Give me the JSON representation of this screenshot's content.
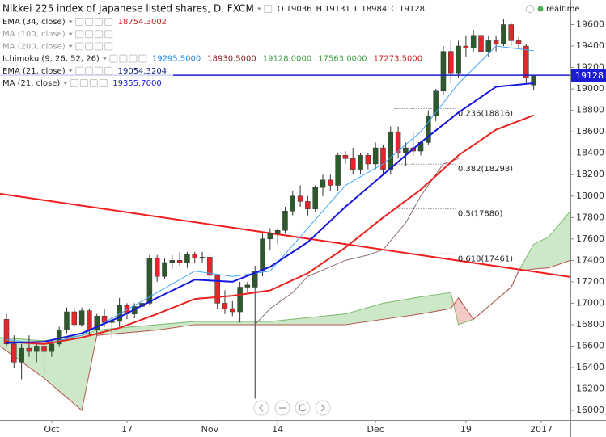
{
  "chart_data": {
    "type": "candlestick",
    "title": "Nikkei 225 index of Japanese listed shares, D, FXCM",
    "ohlc_letters": [
      "O",
      "H",
      "L",
      "C"
    ],
    "status": "realtime",
    "open": [
      16850,
      16620,
      16450,
      16580,
      16550,
      16600,
      16550,
      16620,
      16750,
      16920,
      16800,
      16930,
      16750,
      16880,
      16820,
      16830,
      16980,
      16900,
      16970,
      17000,
      17420,
      17250,
      17380,
      17400,
      17380,
      17460,
      17420,
      17430,
      17260,
      17000,
      16950,
      16920,
      17150,
      17150,
      17300,
      17600,
      17650,
      17680,
      17860,
      18000,
      17950,
      17880,
      18080,
      18150,
      18100,
      18380,
      18350,
      18250,
      18380,
      18300,
      18450,
      18250,
      18600,
      18400,
      18450,
      18420,
      18500,
      18750,
      18980,
      19350,
      19150,
      19400,
      19380,
      19500,
      19350,
      19450,
      19420,
      19600,
      19450,
      19400,
      19036
    ],
    "high": [
      16900,
      16700,
      16620,
      16700,
      16620,
      16700,
      16650,
      16780,
      16960,
      16960,
      16960,
      16950,
      16900,
      16950,
      16880,
      17050,
      17000,
      17000,
      17050,
      17450,
      17450,
      17420,
      17450,
      17480,
      17480,
      17480,
      17480,
      17460,
      17270,
      17120,
      17020,
      17200,
      17200,
      17350,
      17650,
      17700,
      17700,
      17900,
      18050,
      18100,
      18000,
      18100,
      18200,
      18200,
      18400,
      18420,
      18450,
      18400,
      18400,
      18500,
      18480,
      18650,
      18650,
      18500,
      18600,
      18520,
      18800,
      19000,
      19400,
      19450,
      19450,
      19500,
      19550,
      19550,
      19500,
      19500,
      19650,
      19620,
      19480,
      19420,
      19131
    ],
    "low": [
      16600,
      16400,
      16290,
      16500,
      16450,
      16320,
      16500,
      16600,
      16720,
      16780,
      16780,
      16700,
      16700,
      16780,
      16680,
      16780,
      16850,
      16860,
      16940,
      16980,
      17200,
      17230,
      17320,
      17350,
      17330,
      17380,
      17380,
      17200,
      16950,
      16900,
      16880,
      16820,
      17100,
      16110,
      17250,
      17500,
      17550,
      17650,
      17820,
      17900,
      17820,
      17850,
      18000,
      18050,
      18050,
      18300,
      18200,
      18200,
      18250,
      18250,
      18200,
      18200,
      18350,
      18280,
      18380,
      18380,
      18480,
      18700,
      18950,
      19050,
      19100,
      19300,
      19350,
      19300,
      19300,
      19350,
      19400,
      19400,
      19380,
      19050,
      18984
    ],
    "close": [
      16620,
      16450,
      16580,
      16550,
      16600,
      16550,
      16620,
      16750,
      16920,
      16800,
      16930,
      16750,
      16880,
      16820,
      16830,
      16980,
      16900,
      16970,
      17000,
      17420,
      17250,
      17380,
      17400,
      17380,
      17460,
      17420,
      17430,
      17260,
      17000,
      16950,
      16920,
      17150,
      17170,
      17300,
      17600,
      17650,
      17680,
      17860,
      18000,
      17950,
      17880,
      18080,
      18150,
      18100,
      18380,
      18350,
      18250,
      18380,
      18300,
      18450,
      18250,
      18600,
      18400,
      18450,
      18420,
      18500,
      18750,
      18980,
      19350,
      19150,
      19400,
      19380,
      19500,
      19350,
      19450,
      19420,
      19600,
      19450,
      19420,
      19100,
      19128
    ],
    "up_color": "#2c5a2c",
    "down_color": "#e3262b",
    "xlim": [
      -0.86,
      74.87
    ],
    "xticks": [
      {
        "value": 6,
        "label": "Oct"
      },
      {
        "value": 16,
        "label": "17"
      },
      {
        "value": 27,
        "label": "Nov"
      },
      {
        "value": 36,
        "label": "14"
      },
      {
        "value": 49,
        "label": "Dec"
      },
      {
        "value": 61,
        "label": "19"
      },
      {
        "value": 71,
        "label": "2017"
      }
    ],
    "ylim": [
      15910,
      19830
    ],
    "yticks": [
      16000,
      16200,
      16400,
      16600,
      16800,
      17000,
      17200,
      17400,
      17600,
      17800,
      18000,
      18200,
      18400,
      18600,
      18800,
      19000,
      19200,
      19400,
      19600
    ],
    "grid": false,
    "price_line_color": "#1c1cd0",
    "legend": [
      {
        "label": "EMA (34, close)",
        "faded": false,
        "values": [
          {
            "value": 18754.3002,
            "label": "18754.3002",
            "color": "#c62828"
          }
        ]
      },
      {
        "label": "MA (100, close)",
        "faded": true,
        "values": []
      },
      {
        "label": "MA (200, close)",
        "faded": true,
        "values": []
      },
      {
        "label": "Ichimoku (9, 26, 52, 26)",
        "faded": false,
        "values": [
          {
            "value": 19295.5,
            "label": "19295.5000",
            "color": "#1e88e5"
          },
          {
            "value": 18930.5,
            "label": "18930.5000",
            "color": "#8b1a1a"
          },
          {
            "value": 19128,
            "label": "19128.0000",
            "color": "#43a047"
          },
          {
            "value": 17563,
            "label": "17563.0000",
            "color": "#43a047"
          },
          {
            "value": 17273.5,
            "label": "17273.5000",
            "color": "#c62828"
          }
        ]
      },
      {
        "label": "EMA (21, close)",
        "faded": false,
        "values": [
          {
            "value": 19054.3204,
            "label": "19054.3204",
            "color": "#1a237e"
          }
        ]
      },
      {
        "label": "MA (21, close)",
        "faded": false,
        "values": [
          {
            "value": 19355.7,
            "label": "19355.7000",
            "color": "#1c1cd0"
          }
        ]
      }
    ],
    "cloud": {
      "x": [
        -0.86,
        5,
        10,
        12,
        20,
        25,
        35,
        45,
        50,
        55,
        59,
        60,
        62,
        67,
        68,
        70,
        72,
        74.87
      ],
      "span_a": [
        16680,
        16650,
        16700,
        16750,
        16800,
        16830,
        16830,
        16900,
        17000,
        17060,
        17100,
        16800,
        16850,
        17150,
        17300,
        17550,
        17620,
        17860
      ],
      "span_b": [
        16600,
        16300,
        16000,
        16700,
        16750,
        16800,
        16800,
        16800,
        16850,
        16900,
        16950,
        17050,
        16850,
        17150,
        17300,
        17320,
        17330,
        17400
      ],
      "up_color": "#cde8c8",
      "down_color": "#f2c9c4",
      "a_color": "#7cb86f",
      "b_color": "#b5544a"
    },
    "lines": [
      {
        "x": [
          33,
          35,
          38,
          40,
          45,
          48,
          50,
          53,
          55,
          58,
          60
        ],
        "values": [
          16800,
          16950,
          17100,
          17250,
          17400,
          17450,
          17500,
          17750,
          18000,
          18300,
          18350
        ],
        "color": "#8a7070",
        "width": 1
      },
      {
        "x": [
          0,
          5,
          10,
          15,
          20,
          25,
          30,
          35,
          40,
          45,
          50,
          55,
          60,
          65,
          70
        ],
        "values": [
          16660,
          16620,
          16700,
          16900,
          17100,
          17300,
          17250,
          17300,
          17700,
          18100,
          18300,
          18600,
          19050,
          19400,
          19356
        ],
        "color": "#42a5f5",
        "width": 1
      },
      {
        "x": [
          0,
          5,
          10,
          15,
          20,
          25,
          30,
          35,
          40,
          45,
          50,
          55,
          60,
          65,
          70
        ],
        "values": [
          16640,
          16620,
          16680,
          16770,
          16900,
          17040,
          17070,
          17120,
          17280,
          17520,
          17800,
          18060,
          18380,
          18620,
          18754
        ],
        "color": "#e8231f",
        "width": 2
      },
      {
        "x": [
          0,
          5,
          10,
          15,
          20,
          25,
          30,
          35,
          40,
          45,
          50,
          55,
          60,
          65,
          70
        ],
        "values": [
          16630,
          16640,
          16720,
          16870,
          17050,
          17220,
          17200,
          17340,
          17570,
          17900,
          18200,
          18500,
          18780,
          19020,
          19054
        ],
        "color": "#1515e0",
        "width": 2
      }
    ],
    "trend_line": {
      "x": [
        -0.86,
        74.87
      ],
      "values": [
        18022,
        17245
      ],
      "color": "#f21d1d"
    },
    "fibonacci": {
      "x": [
        51.5,
        59.6
      ],
      "levels": [
        {
          "value": 18816,
          "label": "0.236(18816)"
        },
        {
          "value": 18298,
          "label": "0.382(18298)"
        },
        {
          "value": 17880,
          "label": "0.5(17880)"
        },
        {
          "value": 17461,
          "label": "0.618(17461)"
        }
      ]
    }
  }
}
